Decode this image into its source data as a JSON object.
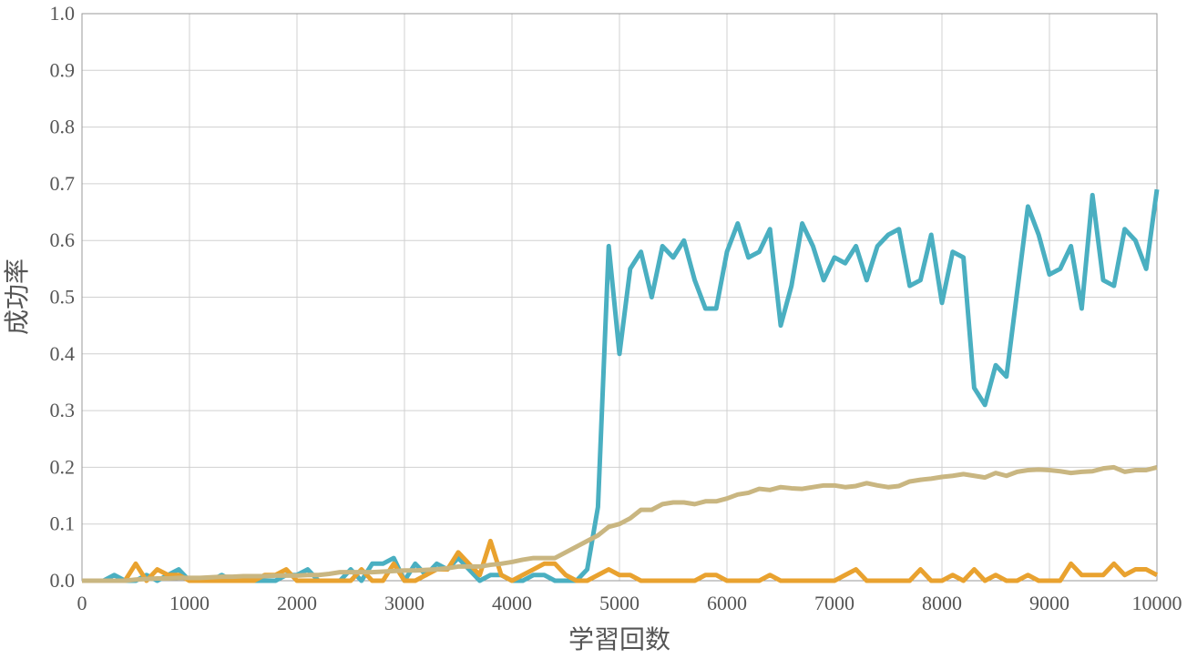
{
  "chart_data": {
    "type": "line",
    "x_label": "学習回数",
    "y_label": "成功率",
    "x": [
      0,
      100,
      200,
      300,
      400,
      500,
      600,
      700,
      800,
      900,
      1000,
      1100,
      1200,
      1300,
      1400,
      1500,
      1600,
      1700,
      1800,
      1900,
      2000,
      2100,
      2200,
      2300,
      2400,
      2500,
      2600,
      2700,
      2800,
      2900,
      3000,
      3100,
      3200,
      3300,
      3400,
      3500,
      3600,
      3700,
      3800,
      3900,
      4000,
      4100,
      4200,
      4300,
      4400,
      4500,
      4600,
      4700,
      4800,
      4900,
      5000,
      5100,
      5200,
      5300,
      5400,
      5500,
      5600,
      5700,
      5800,
      5900,
      6000,
      6100,
      6200,
      6300,
      6400,
      6500,
      6600,
      6700,
      6800,
      6900,
      7000,
      7100,
      7200,
      7300,
      7400,
      7500,
      7600,
      7700,
      7800,
      7900,
      8000,
      8100,
      8200,
      8300,
      8400,
      8500,
      8600,
      8700,
      8800,
      8900,
      9000,
      9100,
      9200,
      9300,
      9400,
      9500,
      9600,
      9700,
      9800,
      9900,
      10000
    ],
    "series": [
      {
        "color": "#4aafc1",
        "values": [
          0,
          0,
          0,
          0.01,
          0,
          0,
          0.01,
          0,
          0.01,
          0.02,
          0,
          0,
          0,
          0.01,
          0,
          0,
          0,
          0,
          0,
          0.01,
          0.01,
          0.02,
          0,
          0,
          0,
          0.02,
          0,
          0.03,
          0.03,
          0.04,
          0,
          0.03,
          0.01,
          0.03,
          0.02,
          0.04,
          0.02,
          0,
          0.01,
          0.01,
          0,
          0,
          0.01,
          0.01,
          0,
          0,
          0,
          0.02,
          0.13,
          0.59,
          0.4,
          0.55,
          0.58,
          0.5,
          0.59,
          0.57,
          0.6,
          0.53,
          0.48,
          0.48,
          0.58,
          0.63,
          0.57,
          0.58,
          0.62,
          0.45,
          0.52,
          0.63,
          0.59,
          0.53,
          0.57,
          0.56,
          0.59,
          0.53,
          0.59,
          0.61,
          0.62,
          0.52,
          0.53,
          0.61,
          0.49,
          0.58,
          0.57,
          0.34,
          0.31,
          0.38,
          0.36,
          0.51,
          0.66,
          0.61,
          0.54,
          0.55,
          0.59,
          0.48,
          0.68,
          0.53,
          0.52,
          0.62,
          0.6,
          0.55,
          0.69
        ]
      },
      {
        "color": "#e9a22f",
        "values": [
          0,
          0,
          0,
          0,
          0,
          0.03,
          0,
          0.02,
          0.01,
          0.01,
          0,
          0,
          0,
          0,
          0,
          0,
          0,
          0.01,
          0.01,
          0.02,
          0,
          0,
          0,
          0,
          0,
          0,
          0.02,
          0,
          0,
          0.03,
          0,
          0,
          0.01,
          0.02,
          0.02,
          0.05,
          0.03,
          0.01,
          0.07,
          0.01,
          0,
          0.01,
          0.02,
          0.03,
          0.03,
          0.01,
          0,
          0,
          0.01,
          0.02,
          0.01,
          0.01,
          0,
          0,
          0,
          0,
          0,
          0,
          0.01,
          0.01,
          0,
          0,
          0,
          0,
          0.01,
          0,
          0,
          0,
          0,
          0,
          0,
          0.01,
          0.02,
          0,
          0,
          0,
          0,
          0,
          0.02,
          0,
          0,
          0.01,
          0,
          0.02,
          0,
          0.01,
          0,
          0,
          0.01,
          0,
          0,
          0,
          0.03,
          0.01,
          0.01,
          0.01,
          0.03,
          0.01,
          0.02,
          0.02,
          0.01
        ]
      },
      {
        "color": "#c9b681",
        "values": [
          0,
          0,
          0,
          0,
          0,
          0.002,
          0.003,
          0.004,
          0.004,
          0.005,
          0.005,
          0.005,
          0.006,
          0.007,
          0.007,
          0.008,
          0.008,
          0.008,
          0.009,
          0.009,
          0.009,
          0.01,
          0.01,
          0.012,
          0.015,
          0.015,
          0.015,
          0.015,
          0.016,
          0.017,
          0.018,
          0.018,
          0.019,
          0.02,
          0.022,
          0.025,
          0.025,
          0.025,
          0.028,
          0.03,
          0.033,
          0.037,
          0.04,
          0.04,
          0.04,
          0.05,
          0.06,
          0.07,
          0.08,
          0.095,
          0.1,
          0.11,
          0.125,
          0.125,
          0.135,
          0.138,
          0.138,
          0.135,
          0.14,
          0.14,
          0.145,
          0.152,
          0.155,
          0.162,
          0.16,
          0.165,
          0.163,
          0.162,
          0.165,
          0.168,
          0.168,
          0.165,
          0.167,
          0.172,
          0.168,
          0.165,
          0.167,
          0.175,
          0.178,
          0.18,
          0.183,
          0.185,
          0.188,
          0.185,
          0.182,
          0.19,
          0.185,
          0.192,
          0.195,
          0.196,
          0.195,
          0.193,
          0.19,
          0.192,
          0.193,
          0.198,
          0.2,
          0.192,
          0.195,
          0.195,
          0.2
        ]
      }
    ],
    "xlim": [
      0,
      10000
    ],
    "xticks": [
      0,
      1000,
      2000,
      3000,
      4000,
      5000,
      6000,
      7000,
      8000,
      9000,
      10000
    ],
    "ylim": [
      0,
      1
    ],
    "yticks": [
      {
        "value": 0,
        "label": "0.0"
      },
      0.1,
      0.2,
      0.3,
      0.4,
      0.5,
      0.6,
      0.7,
      0.8,
      0.9,
      {
        "value": 1,
        "label": "1.0"
      }
    ],
    "grid": true
  }
}
